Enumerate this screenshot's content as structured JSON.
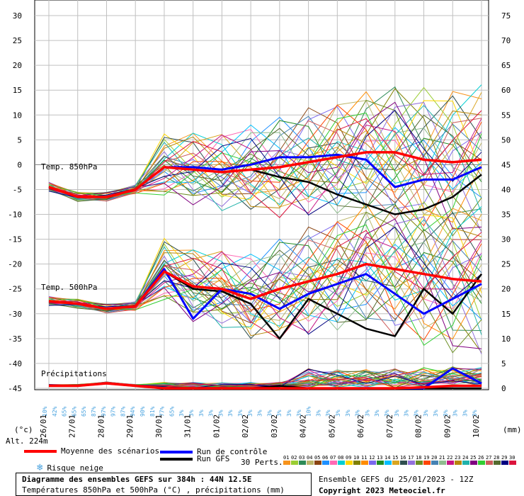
{
  "panel_labels": {
    "t850": "Temp. 850hPa",
    "t500": "Temp. 500hPa",
    "precip": "Précipitations"
  },
  "axis": {
    "left_unit": "(°c)",
    "right_unit": "(mm)",
    "altitude": "Alt. 224m",
    "left_ticks": [
      "30",
      "25",
      "20",
      "15",
      "10",
      "5",
      "0",
      "-5",
      "-10",
      "-15",
      "-20",
      "-25",
      "-30",
      "-35",
      "-40",
      "-45"
    ],
    "right_ticks": [
      "75",
      "70",
      "65",
      "60",
      "55",
      "50",
      "45",
      "40",
      "35",
      "30",
      "25",
      "20",
      "15",
      "10",
      "5",
      "0"
    ],
    "dates": [
      "26/01",
      "27/01",
      "28/01",
      "29/01",
      "30/01",
      "31/01",
      "01/02",
      "02/02",
      "03/02",
      "04/02",
      "05/02",
      "06/02",
      "07/02",
      "08/02",
      "09/02",
      "10/02"
    ]
  },
  "snow_risk": {
    "labels": [
      "10%",
      "42%",
      "65%",
      "65%",
      "65%",
      "87%",
      "97%",
      "97%",
      "87%",
      "94%",
      "90%",
      "81%",
      "77%",
      "65%",
      "3%",
      "3%",
      "3%",
      "3%",
      "3%",
      "3%",
      "3%",
      "3%",
      "3%",
      "3%",
      "3%",
      "3%",
      "3%",
      "10%",
      "3%",
      "3%",
      "3%",
      "3%",
      "3%",
      "3%",
      "3%",
      "3%",
      "3%",
      "3%",
      "3%",
      "3%",
      "3%",
      "3%",
      "3%",
      "3%",
      "3%"
    ]
  },
  "legend": {
    "mean": "Moyenne des scénarios",
    "control": "Run de contrôle",
    "gfs": "Run GFS",
    "perts": "30 Perts.",
    "snow": "Risque neige"
  },
  "colors": {
    "mean": "#ff0000",
    "control": "#0000ff",
    "gfs": "#000000",
    "grid": "#c0c0c0",
    "zero_line": "#808080",
    "snow": "#4aa3df"
  },
  "perturbations": {
    "ids": [
      "01",
      "02",
      "03",
      "04",
      "05",
      "06",
      "07",
      "08",
      "09",
      "10",
      "11",
      "12",
      "13",
      "14",
      "15",
      "16",
      "17",
      "18",
      "19",
      "20",
      "21",
      "22",
      "23",
      "24",
      "25",
      "26",
      "27",
      "28",
      "29",
      "30"
    ],
    "colors": [
      "#f7941d",
      "#9acd32",
      "#2e8b57",
      "#bdb76b",
      "#8b4513",
      "#1e90ff",
      "#ff69b4",
      "#00ced1",
      "#ffd700",
      "#808000",
      "#ff8c00",
      "#7b68ee",
      "#228b22",
      "#00bfff",
      "#daa520",
      "#2f4f4f",
      "#9370db",
      "#6b8e23",
      "#ff4500",
      "#4682b4",
      "#8fbc8f",
      "#c71585",
      "#b8860b",
      "#20b2aa",
      "#800080",
      "#32cd32",
      "#cd5c5c",
      "#556b2f",
      "#000080",
      "#dc143c"
    ]
  },
  "footer": {
    "title": "Diagramme des ensembles GEFS sur 384h : 44N 12.5E",
    "subtitle": "Températures 850hPa et 500hPa (°C) , précipitations (mm)",
    "run": "Ensemble GEFS du 25/01/2023 - 12Z",
    "copyright": "Copyright 2023 Meteociel.fr"
  },
  "chart_data": {
    "type": "line",
    "x": [
      "26/01",
      "27/01",
      "28/01",
      "29/01",
      "30/01",
      "31/01",
      "01/02",
      "02/02",
      "03/02",
      "04/02",
      "05/02",
      "06/02",
      "07/02",
      "08/02",
      "09/02",
      "10/02"
    ],
    "ylim": [
      -45,
      30
    ],
    "y2lim": [
      0,
      75
    ],
    "series": [
      {
        "name": "Moyenne des scénarios",
        "panel": "Temp. 850hPa",
        "values": [
          -4.5,
          -6.5,
          -6.5,
          -5,
          -0.5,
          -1,
          -1.5,
          -1,
          -0.5,
          0.5,
          1.5,
          2.5,
          2.5,
          1,
          0.5,
          1
        ]
      },
      {
        "name": "Run de contrôle",
        "panel": "Temp. 850hPa",
        "values": [
          -4.5,
          -6.5,
          -6.5,
          -5,
          -0.5,
          -0.5,
          -1,
          0,
          1.5,
          1.5,
          2,
          1,
          -4.5,
          -3,
          -3,
          -0.5
        ]
      },
      {
        "name": "Run GFS",
        "panel": "Temp. 850hPa",
        "values": [
          -4.5,
          -6.5,
          -6.5,
          -5,
          -0.5,
          -1,
          -1.5,
          -1,
          -2.5,
          -3.5,
          -6,
          -8,
          -10,
          -9,
          -6.5,
          -2
        ]
      },
      {
        "name": "Moyenne des scénarios",
        "panel": "Temp. 500hPa",
        "values": [
          -27.5,
          -28,
          -29,
          -28.5,
          -21.5,
          -24.5,
          -25,
          -27,
          -25,
          -23.5,
          -22,
          -20,
          -21,
          -22,
          -23,
          -23.5
        ]
      },
      {
        "name": "Run de contrôle",
        "panel": "Temp. 500hPa",
        "values": [
          -27.5,
          -28,
          -29,
          -28.5,
          -21,
          -31,
          -25,
          -26,
          -29,
          -26,
          -24,
          -22,
          -26,
          -30,
          -27,
          -24
        ]
      },
      {
        "name": "Run GFS",
        "panel": "Temp. 500hPa",
        "values": [
          -27.5,
          -28,
          -29,
          -28.5,
          -21.5,
          -25,
          -25.5,
          -28,
          -35,
          -27,
          -30,
          -33,
          -34.5,
          -25,
          -30,
          -22
        ]
      },
      {
        "name": "Moyenne des scénarios",
        "panel": "Précipitations",
        "values": [
          0.5,
          0.5,
          1,
          0.5,
          0,
          0,
          0,
          0,
          0,
          0,
          0,
          0,
          0,
          0.2,
          0.5,
          0.5
        ]
      },
      {
        "name": "Run de contrôle",
        "panel": "Précipitations",
        "values": [
          0.5,
          0.5,
          1,
          0.5,
          0,
          0,
          0,
          0,
          0,
          0,
          0,
          0,
          0,
          0,
          4,
          1
        ]
      },
      {
        "name": "Run GFS",
        "panel": "Précipitations",
        "values": [
          0.5,
          0.5,
          1,
          0.5,
          0,
          0,
          0,
          0,
          0.5,
          0,
          0,
          0,
          0,
          0,
          0,
          0
        ]
      }
    ]
  }
}
